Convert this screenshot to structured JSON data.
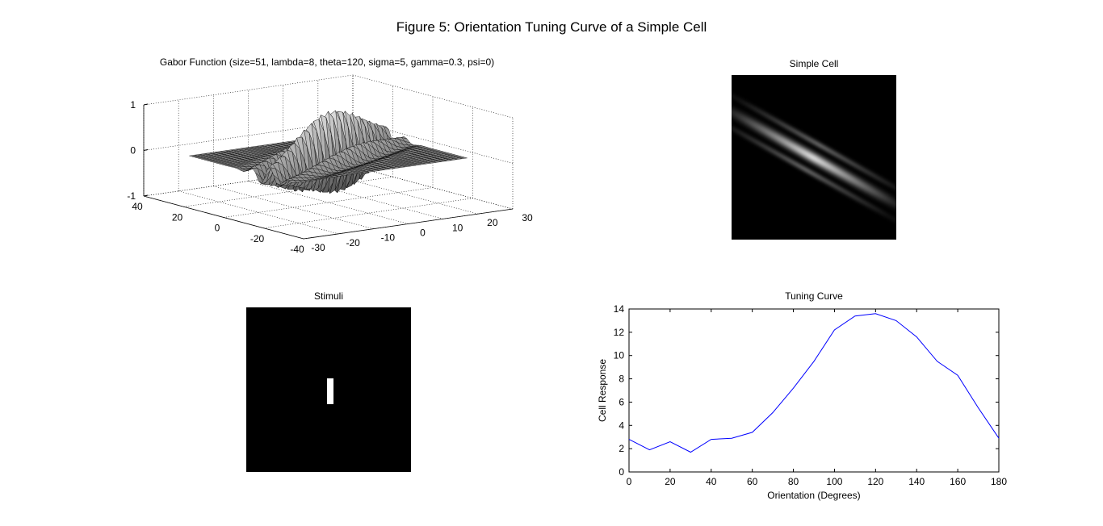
{
  "figure_title": "Figure 5: Orientation Tuning Curve of a Simple Cell",
  "chart_data": [
    {
      "type": "surface",
      "title": "Gabor Function (size=51, lambda=8, theta=120, sigma=5, gamma=0.3, psi=0)",
      "z_ticks": [
        "1",
        "0",
        "-1"
      ],
      "y_ticks": [
        "40",
        "20",
        "0",
        "-20",
        "-40"
      ],
      "x_ticks": [
        "-30",
        "-20",
        "-10",
        "0",
        "10",
        "20",
        "30"
      ],
      "zlim": [
        -1,
        1
      ],
      "size": 51,
      "lambda": 8,
      "theta": 120,
      "sigma": 5,
      "gamma": 0.3,
      "psi": 0,
      "colormap": "gray",
      "grid": true
    },
    {
      "type": "heatmap",
      "title": "Simple Cell",
      "colormap": "gray",
      "content": "diagonal bright band with two fainter parallel side bands"
    },
    {
      "type": "heatmap",
      "title": "Stimuli",
      "colormap": "gray",
      "content": "short white vertical bar at center on black background"
    },
    {
      "type": "line",
      "title": "Tuning Curve",
      "xlabel": "Orientation (Degrees)",
      "ylabel": "Cell Response",
      "xlim": [
        0,
        180
      ],
      "ylim": [
        0,
        14
      ],
      "x_ticks": [
        0,
        20,
        40,
        60,
        80,
        100,
        120,
        140,
        160,
        180
      ],
      "y_ticks": [
        0,
        2,
        4,
        6,
        8,
        10,
        12,
        14
      ],
      "line_color": "#0000ff",
      "grid": false,
      "series": [
        {
          "x": [
            0,
            10,
            20,
            30,
            40,
            50,
            60,
            70,
            80,
            90,
            100,
            110,
            120,
            130,
            140,
            150,
            160,
            170,
            180
          ],
          "values": [
            2.8,
            1.9,
            2.6,
            1.7,
            2.8,
            2.9,
            3.4,
            5.1,
            7.2,
            9.5,
            12.2,
            13.4,
            13.6,
            13.0,
            11.6,
            9.5,
            8.3,
            5.5,
            2.9
          ]
        }
      ]
    }
  ]
}
